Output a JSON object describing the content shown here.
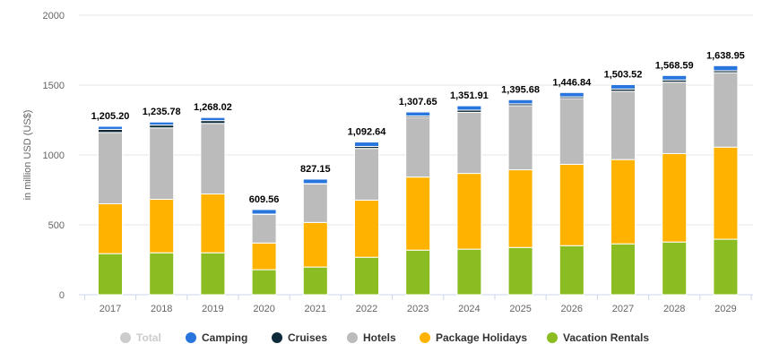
{
  "chart_data": {
    "type": "bar",
    "stacked": true,
    "ylabel": "in million USD (US$)",
    "ylim": [
      0,
      2000
    ],
    "yticks": [
      0,
      500,
      1000,
      1500,
      2000
    ],
    "grid": true,
    "legend_position": "bottom",
    "categories": [
      "2017",
      "2018",
      "2019",
      "2020",
      "2021",
      "2022",
      "2023",
      "2024",
      "2025",
      "2026",
      "2027",
      "2028",
      "2029"
    ],
    "totals": [
      1205.2,
      1235.78,
      1268.02,
      609.56,
      827.15,
      1092.64,
      1307.65,
      1351.91,
      1395.68,
      1446.84,
      1503.52,
      1568.59,
      1638.95
    ],
    "total_labels": [
      "1,205.20",
      "1,235.78",
      "1,268.02",
      "609.56",
      "827.15",
      "1,092.64",
      "1,307.65",
      "1,351.91",
      "1,395.68",
      "1,446.84",
      "1,503.52",
      "1,568.59",
      "1,638.95"
    ],
    "total_legend": {
      "name": "Total",
      "color": "#cccccc",
      "disabled": true
    },
    "series": [
      {
        "name": "Vacation Rentals",
        "color": "#8bbc21",
        "values": [
          294,
          300,
          300,
          179,
          198,
          268,
          319,
          326,
          338,
          351,
          364,
          377,
          397
        ]
      },
      {
        "name": "Package Holidays",
        "color": "#ffb300",
        "values": [
          357,
          383,
          421,
          191,
          319,
          409,
          523,
          542,
          556,
          582,
          603,
          633,
          659
        ]
      },
      {
        "name": "Hotels",
        "color": "#bbbbbb",
        "values": [
          510,
          511,
          505,
          205,
          275,
          370,
          427,
          437,
          459,
          471,
          489,
          511,
          533
        ]
      },
      {
        "name": "Cruises",
        "color": "#0e2a3a",
        "values": [
          22,
          20,
          20,
          2,
          3,
          14,
          10,
          16,
          13,
          12,
          16,
          16,
          14
        ]
      },
      {
        "name": "Camping",
        "color": "#2876dd",
        "values": [
          22.2,
          21.78,
          22.02,
          32.56,
          32.15,
          31.64,
          28.65,
          30.91,
          29.68,
          30.84,
          31.52,
          31.59,
          35.95
        ]
      }
    ],
    "legend_order": [
      "Total",
      "Camping",
      "Cruises",
      "Hotels",
      "Package Holidays",
      "Vacation Rentals"
    ]
  }
}
